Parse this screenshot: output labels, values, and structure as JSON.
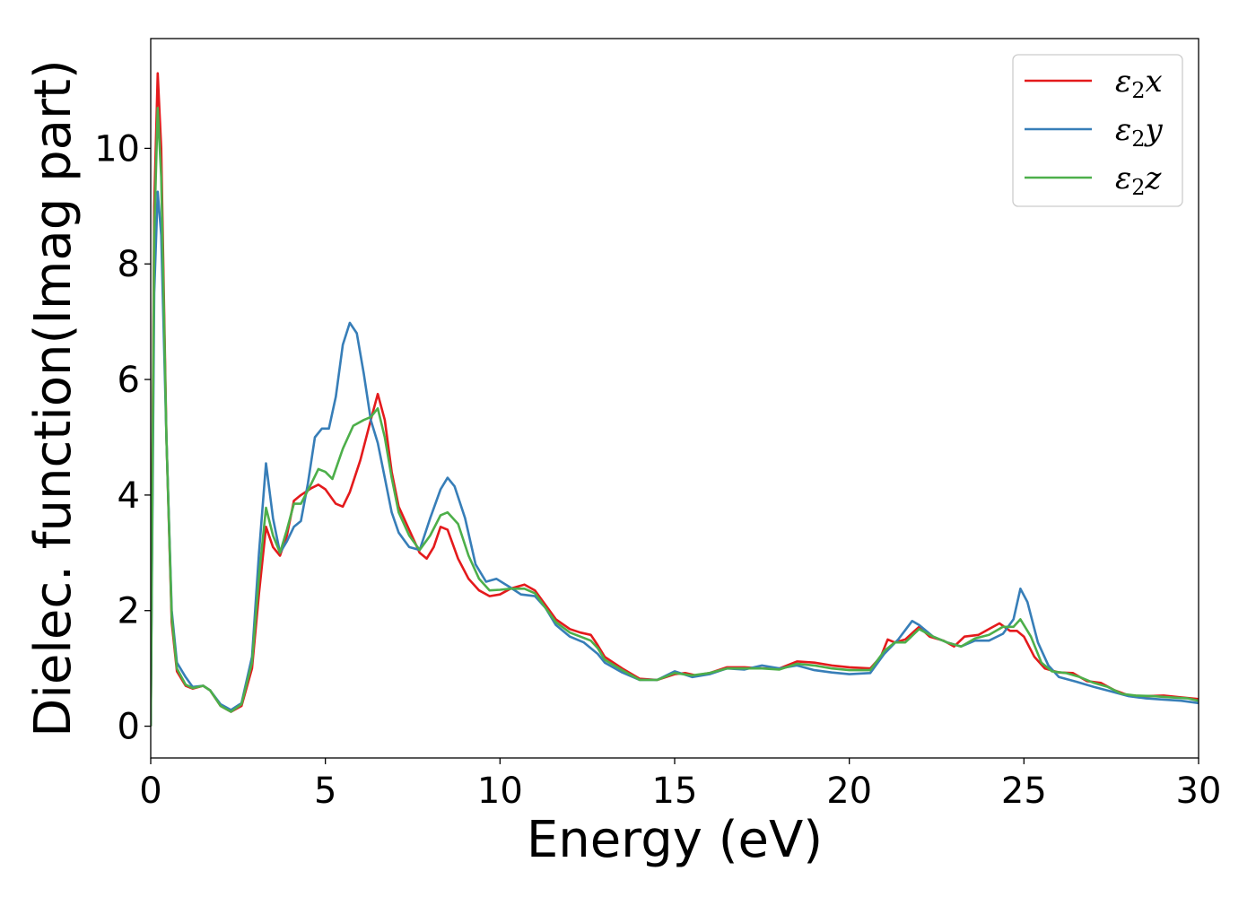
{
  "chart_data": {
    "type": "line",
    "title": "",
    "xlabel": "Energy (eV)",
    "ylabel": "Dielec. function(Imag part)",
    "xlim": [
      0,
      30
    ],
    "ylim": [
      -0.55,
      11.9
    ],
    "xticks": [
      0,
      5,
      10,
      15,
      20,
      25,
      30
    ],
    "yticks": [
      0,
      2,
      4,
      6,
      8,
      10
    ],
    "grid": false,
    "legend_position": "top-right",
    "series": [
      {
        "name": "ε₂x",
        "name_main": "ε",
        "name_sub": "2",
        "name_tail": "x",
        "color": "#e41a1c",
        "points": [
          [
            0,
            0
          ],
          [
            0.1,
            9
          ],
          [
            0.2,
            11.3
          ],
          [
            0.3,
            10
          ],
          [
            0.45,
            5
          ],
          [
            0.6,
            1.8
          ],
          [
            0.75,
            0.95
          ],
          [
            1.0,
            0.7
          ],
          [
            1.2,
            0.65
          ],
          [
            1.5,
            0.7
          ],
          [
            1.7,
            0.62
          ],
          [
            2.0,
            0.35
          ],
          [
            2.3,
            0.25
          ],
          [
            2.6,
            0.35
          ],
          [
            2.9,
            1.0
          ],
          [
            3.1,
            2.3
          ],
          [
            3.3,
            3.45
          ],
          [
            3.5,
            3.1
          ],
          [
            3.7,
            2.95
          ],
          [
            3.9,
            3.3
          ],
          [
            4.1,
            3.9
          ],
          [
            4.3,
            4.0
          ],
          [
            4.6,
            4.12
          ],
          [
            4.8,
            4.18
          ],
          [
            5.0,
            4.1
          ],
          [
            5.3,
            3.85
          ],
          [
            5.5,
            3.8
          ],
          [
            5.7,
            4.05
          ],
          [
            6.0,
            4.6
          ],
          [
            6.3,
            5.3
          ],
          [
            6.5,
            5.75
          ],
          [
            6.7,
            5.3
          ],
          [
            6.9,
            4.4
          ],
          [
            7.1,
            3.8
          ],
          [
            7.4,
            3.4
          ],
          [
            7.7,
            3.0
          ],
          [
            7.9,
            2.9
          ],
          [
            8.1,
            3.1
          ],
          [
            8.3,
            3.45
          ],
          [
            8.5,
            3.4
          ],
          [
            8.8,
            2.9
          ],
          [
            9.1,
            2.55
          ],
          [
            9.4,
            2.35
          ],
          [
            9.7,
            2.25
          ],
          [
            10.0,
            2.28
          ],
          [
            10.3,
            2.38
          ],
          [
            10.7,
            2.45
          ],
          [
            11.0,
            2.35
          ],
          [
            11.3,
            2.1
          ],
          [
            11.6,
            1.85
          ],
          [
            12.0,
            1.68
          ],
          [
            12.3,
            1.62
          ],
          [
            12.6,
            1.58
          ],
          [
            12.8,
            1.4
          ],
          [
            13.0,
            1.2
          ],
          [
            13.5,
            1.0
          ],
          [
            14.0,
            0.82
          ],
          [
            14.5,
            0.8
          ],
          [
            15.0,
            0.9
          ],
          [
            15.3,
            0.92
          ],
          [
            15.6,
            0.88
          ],
          [
            16.0,
            0.92
          ],
          [
            16.5,
            1.02
          ],
          [
            17.0,
            1.02
          ],
          [
            17.5,
            1.0
          ],
          [
            18.0,
            1.0
          ],
          [
            18.5,
            1.12
          ],
          [
            19.0,
            1.1
          ],
          [
            19.5,
            1.05
          ],
          [
            20.0,
            1.02
          ],
          [
            20.6,
            1.0
          ],
          [
            20.9,
            1.2
          ],
          [
            21.1,
            1.5
          ],
          [
            21.3,
            1.45
          ],
          [
            21.6,
            1.5
          ],
          [
            22.0,
            1.72
          ],
          [
            22.3,
            1.55
          ],
          [
            22.7,
            1.48
          ],
          [
            23.0,
            1.38
          ],
          [
            23.3,
            1.55
          ],
          [
            23.7,
            1.58
          ],
          [
            24.0,
            1.68
          ],
          [
            24.3,
            1.78
          ],
          [
            24.6,
            1.65
          ],
          [
            24.8,
            1.65
          ],
          [
            25.0,
            1.55
          ],
          [
            25.3,
            1.2
          ],
          [
            25.6,
            1.0
          ],
          [
            26.0,
            0.93
          ],
          [
            26.4,
            0.92
          ],
          [
            26.8,
            0.78
          ],
          [
            27.2,
            0.75
          ],
          [
            27.6,
            0.62
          ],
          [
            28.0,
            0.53
          ],
          [
            28.5,
            0.52
          ],
          [
            29.0,
            0.53
          ],
          [
            29.5,
            0.5
          ],
          [
            30.0,
            0.47
          ]
        ]
      },
      {
        "name": "ε₂y",
        "name_main": "ε",
        "name_sub": "2",
        "name_tail": "y",
        "color": "#377eb8",
        "points": [
          [
            0,
            0
          ],
          [
            0.1,
            7.5
          ],
          [
            0.2,
            9.25
          ],
          [
            0.3,
            8.5
          ],
          [
            0.45,
            5
          ],
          [
            0.6,
            2.0
          ],
          [
            0.75,
            1.1
          ],
          [
            1.0,
            0.85
          ],
          [
            1.2,
            0.68
          ],
          [
            1.5,
            0.7
          ],
          [
            1.7,
            0.62
          ],
          [
            2.0,
            0.38
          ],
          [
            2.3,
            0.28
          ],
          [
            2.6,
            0.4
          ],
          [
            2.9,
            1.2
          ],
          [
            3.1,
            3.0
          ],
          [
            3.3,
            4.55
          ],
          [
            3.5,
            3.6
          ],
          [
            3.7,
            3.0
          ],
          [
            3.9,
            3.2
          ],
          [
            4.1,
            3.45
          ],
          [
            4.3,
            3.55
          ],
          [
            4.5,
            4.2
          ],
          [
            4.7,
            5.0
          ],
          [
            4.9,
            5.15
          ],
          [
            5.1,
            5.15
          ],
          [
            5.3,
            5.7
          ],
          [
            5.5,
            6.6
          ],
          [
            5.7,
            6.98
          ],
          [
            5.9,
            6.8
          ],
          [
            6.1,
            6.1
          ],
          [
            6.3,
            5.3
          ],
          [
            6.5,
            4.9
          ],
          [
            6.7,
            4.3
          ],
          [
            6.9,
            3.7
          ],
          [
            7.1,
            3.35
          ],
          [
            7.4,
            3.1
          ],
          [
            7.7,
            3.05
          ],
          [
            8.0,
            3.6
          ],
          [
            8.3,
            4.1
          ],
          [
            8.5,
            4.3
          ],
          [
            8.7,
            4.15
          ],
          [
            9.0,
            3.6
          ],
          [
            9.3,
            2.8
          ],
          [
            9.6,
            2.5
          ],
          [
            9.9,
            2.55
          ],
          [
            10.3,
            2.4
          ],
          [
            10.6,
            2.28
          ],
          [
            11.0,
            2.25
          ],
          [
            11.3,
            2.05
          ],
          [
            11.6,
            1.75
          ],
          [
            12.0,
            1.55
          ],
          [
            12.4,
            1.45
          ],
          [
            12.8,
            1.25
          ],
          [
            13.0,
            1.1
          ],
          [
            13.5,
            0.93
          ],
          [
            14.0,
            0.8
          ],
          [
            14.5,
            0.8
          ],
          [
            15.0,
            0.95
          ],
          [
            15.5,
            0.85
          ],
          [
            16.0,
            0.9
          ],
          [
            16.5,
            1.0
          ],
          [
            17.0,
            0.98
          ],
          [
            17.5,
            1.05
          ],
          [
            18.0,
            1.0
          ],
          [
            18.5,
            1.05
          ],
          [
            19.0,
            0.97
          ],
          [
            19.5,
            0.93
          ],
          [
            20.0,
            0.9
          ],
          [
            20.6,
            0.92
          ],
          [
            21.0,
            1.25
          ],
          [
            21.4,
            1.5
          ],
          [
            21.8,
            1.82
          ],
          [
            22.0,
            1.75
          ],
          [
            22.4,
            1.55
          ],
          [
            22.8,
            1.45
          ],
          [
            23.2,
            1.38
          ],
          [
            23.6,
            1.48
          ],
          [
            24.0,
            1.48
          ],
          [
            24.4,
            1.6
          ],
          [
            24.7,
            1.85
          ],
          [
            24.9,
            2.38
          ],
          [
            25.1,
            2.15
          ],
          [
            25.4,
            1.45
          ],
          [
            25.7,
            1.05
          ],
          [
            26.0,
            0.85
          ],
          [
            26.5,
            0.77
          ],
          [
            27.0,
            0.68
          ],
          [
            27.5,
            0.6
          ],
          [
            28.0,
            0.52
          ],
          [
            28.5,
            0.48
          ],
          [
            29.0,
            0.46
          ],
          [
            29.5,
            0.44
          ],
          [
            30.0,
            0.4
          ]
        ]
      },
      {
        "name": "ε₂z",
        "name_main": "ε",
        "name_sub": "2",
        "name_tail": "z",
        "color": "#4daf4a",
        "points": [
          [
            0,
            0
          ],
          [
            0.1,
            8.5
          ],
          [
            0.2,
            10.7
          ],
          [
            0.3,
            9.5
          ],
          [
            0.45,
            5
          ],
          [
            0.6,
            1.9
          ],
          [
            0.75,
            1.0
          ],
          [
            1.0,
            0.72
          ],
          [
            1.2,
            0.66
          ],
          [
            1.5,
            0.7
          ],
          [
            1.7,
            0.62
          ],
          [
            2.0,
            0.35
          ],
          [
            2.3,
            0.25
          ],
          [
            2.6,
            0.38
          ],
          [
            2.9,
            1.1
          ],
          [
            3.1,
            2.6
          ],
          [
            3.3,
            3.78
          ],
          [
            3.5,
            3.3
          ],
          [
            3.7,
            3.0
          ],
          [
            3.9,
            3.4
          ],
          [
            4.1,
            3.85
          ],
          [
            4.3,
            3.85
          ],
          [
            4.6,
            4.2
          ],
          [
            4.8,
            4.45
          ],
          [
            5.0,
            4.4
          ],
          [
            5.2,
            4.28
          ],
          [
            5.5,
            4.8
          ],
          [
            5.8,
            5.2
          ],
          [
            6.1,
            5.3
          ],
          [
            6.3,
            5.35
          ],
          [
            6.5,
            5.5
          ],
          [
            6.7,
            5.0
          ],
          [
            6.9,
            4.3
          ],
          [
            7.1,
            3.7
          ],
          [
            7.4,
            3.3
          ],
          [
            7.7,
            3.05
          ],
          [
            8.0,
            3.3
          ],
          [
            8.3,
            3.65
          ],
          [
            8.5,
            3.7
          ],
          [
            8.8,
            3.5
          ],
          [
            9.1,
            2.95
          ],
          [
            9.4,
            2.55
          ],
          [
            9.7,
            2.35
          ],
          [
            10.0,
            2.36
          ],
          [
            10.3,
            2.38
          ],
          [
            10.7,
            2.38
          ],
          [
            11.0,
            2.3
          ],
          [
            11.3,
            2.05
          ],
          [
            11.6,
            1.8
          ],
          [
            12.0,
            1.62
          ],
          [
            12.3,
            1.55
          ],
          [
            12.6,
            1.48
          ],
          [
            12.8,
            1.35
          ],
          [
            13.0,
            1.15
          ],
          [
            13.5,
            0.97
          ],
          [
            14.0,
            0.8
          ],
          [
            14.5,
            0.8
          ],
          [
            15.0,
            0.92
          ],
          [
            15.5,
            0.88
          ],
          [
            16.0,
            0.92
          ],
          [
            16.5,
            1.0
          ],
          [
            17.0,
            1.0
          ],
          [
            17.5,
            1.0
          ],
          [
            18.0,
            0.98
          ],
          [
            18.5,
            1.08
          ],
          [
            19.0,
            1.05
          ],
          [
            19.5,
            1.0
          ],
          [
            20.0,
            0.97
          ],
          [
            20.6,
            0.97
          ],
          [
            21.0,
            1.3
          ],
          [
            21.3,
            1.45
          ],
          [
            21.6,
            1.45
          ],
          [
            22.0,
            1.68
          ],
          [
            22.4,
            1.55
          ],
          [
            22.8,
            1.45
          ],
          [
            23.2,
            1.38
          ],
          [
            23.6,
            1.52
          ],
          [
            24.0,
            1.58
          ],
          [
            24.4,
            1.72
          ],
          [
            24.7,
            1.72
          ],
          [
            24.9,
            1.85
          ],
          [
            25.2,
            1.55
          ],
          [
            25.5,
            1.1
          ],
          [
            25.8,
            0.95
          ],
          [
            26.2,
            0.92
          ],
          [
            26.6,
            0.85
          ],
          [
            27.0,
            0.75
          ],
          [
            27.4,
            0.68
          ],
          [
            27.8,
            0.56
          ],
          [
            28.2,
            0.53
          ],
          [
            28.7,
            0.52
          ],
          [
            29.2,
            0.5
          ],
          [
            29.7,
            0.48
          ],
          [
            30.0,
            0.44
          ]
        ]
      }
    ]
  }
}
